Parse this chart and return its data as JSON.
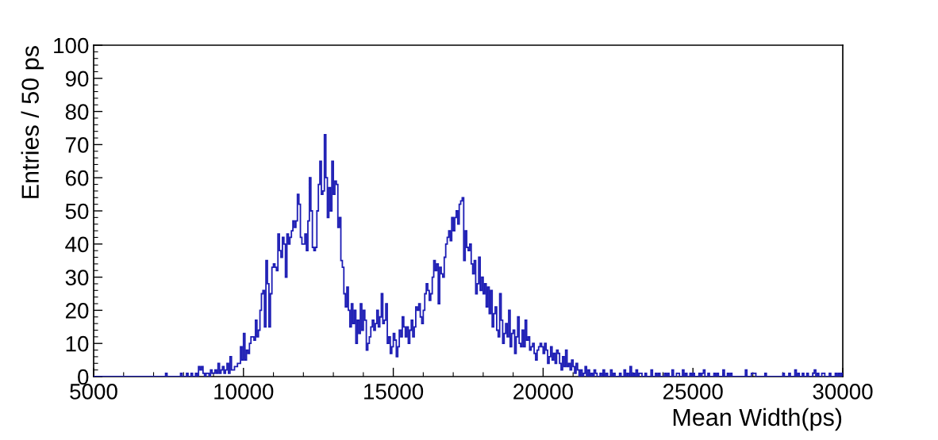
{
  "chart_data": {
    "type": "histogram",
    "xlabel": "Mean Width(ps)",
    "ylabel": "Entries / 50 ps",
    "color": "#1c1cb4",
    "xlim": [
      5000,
      30000
    ],
    "xticks": [
      5000,
      10000,
      15000,
      20000,
      25000,
      30000
    ],
    "ylim": [
      0,
      100
    ],
    "yticks": [
      0,
      10,
      20,
      30,
      40,
      50,
      60,
      70,
      80,
      90,
      100
    ],
    "grid": false,
    "legend": false,
    "bins": [
      5000,
      5050,
      5100,
      5150,
      5200,
      5250,
      5300,
      5350,
      5400,
      5450,
      5500,
      5550,
      5600,
      5650,
      5700,
      5750,
      5800,
      5850,
      5900,
      5950,
      6000,
      6050,
      6100,
      6150,
      6200,
      6250,
      6300,
      6350,
      6400,
      6450,
      6500,
      6550,
      6600,
      6650,
      6700,
      6750,
      6800,
      6850,
      6900,
      6950,
      7000,
      7050,
      7100,
      7150,
      7200,
      7250,
      7300,
      7350,
      7400,
      7450,
      7500,
      7550,
      7600,
      7650,
      7700,
      7750,
      7800,
      7850,
      7900,
      7950,
      8000,
      8050,
      8100,
      8150,
      8200,
      8250,
      8300,
      8350,
      8400,
      8450,
      8500,
      8550,
      8600,
      8650,
      8700,
      8750,
      8800,
      8850,
      8900,
      8950,
      9000,
      9050,
      9100,
      9150,
      9200,
      9250,
      9300,
      9350,
      9400,
      9450,
      9500,
      9550,
      9600,
      9650,
      9700,
      9750,
      9800,
      9850,
      9900,
      9950,
      10000,
      10050,
      10100,
      10150,
      10200,
      10250,
      10300,
      10350,
      10400,
      10450,
      10500,
      10550,
      10600,
      10650,
      10700,
      10750,
      10800,
      10850,
      10900,
      10950,
      11000,
      11050,
      11100,
      11150,
      11200,
      11250,
      11300,
      11350,
      11400,
      11450,
      11500,
      11550,
      11600,
      11650,
      11700,
      11750,
      11800,
      11850,
      11900,
      11950,
      12000,
      12050,
      12100,
      12150,
      12200,
      12250,
      12300,
      12350,
      12400,
      12450,
      12500,
      12550,
      12600,
      12650,
      12700,
      12750,
      12800,
      12850,
      12900,
      12950,
      13000,
      13050,
      13100,
      13150,
      13200,
      13250,
      13300,
      13350,
      13400,
      13450,
      13500,
      13550,
      13600,
      13650,
      13700,
      13750,
      13800,
      13850,
      13900,
      13950,
      14000,
      14050,
      14100,
      14150,
      14200,
      14250,
      14300,
      14350,
      14400,
      14450,
      14500,
      14550,
      14600,
      14650,
      14700,
      14750,
      14800,
      14850,
      14900,
      14950,
      15000,
      15050,
      15100,
      15150,
      15200,
      15250,
      15300,
      15350,
      15400,
      15450,
      15500,
      15550,
      15600,
      15650,
      15700,
      15750,
      15800,
      15850,
      15900,
      15950,
      16000,
      16050,
      16100,
      16150,
      16200,
      16250,
      16300,
      16350,
      16400,
      16450,
      16500,
      16550,
      16600,
      16650,
      16700,
      16750,
      16800,
      16850,
      16900,
      16950,
      17000,
      17050,
      17100,
      17150,
      17200,
      17250,
      17300,
      17350,
      17400,
      17450,
      17500,
      17550,
      17600,
      17650,
      17700,
      17750,
      17800,
      17850,
      17900,
      17950,
      18000,
      18050,
      18100,
      18150,
      18200,
      18250,
      18300,
      18350,
      18400,
      18450,
      18500,
      18550,
      18600,
      18650,
      18700,
      18750,
      18800,
      18850,
      18900,
      18950,
      19000,
      19050,
      19100,
      19150,
      19200,
      19250,
      19300,
      19350,
      19400,
      19450,
      19500,
      19550,
      19600,
      19650,
      19700,
      19750,
      19800,
      19850,
      19900,
      19950,
      20000,
      20050,
      20100,
      20150,
      20200,
      20250,
      20300,
      20350,
      20400,
      20450,
      20500,
      20550,
      20600,
      20650,
      20700,
      20750,
      20800,
      20850,
      20900,
      20950,
      21000,
      21050,
      21100,
      21150,
      21200,
      21250,
      21300,
      21350,
      21400,
      21450,
      21500,
      21550,
      21600,
      21650,
      21700,
      21750,
      21800,
      21850,
      21900,
      21950,
      22000,
      22050,
      22100,
      22150,
      22200,
      22250,
      22300,
      22350,
      22400,
      22450,
      22500,
      22550,
      22600,
      22650,
      22700,
      22750,
      22800,
      22850,
      22900,
      22950,
      23000,
      23050,
      23100,
      23150,
      23200,
      23250,
      23300,
      23350,
      23400,
      23450,
      23500,
      23550,
      23600,
      23650,
      23700,
      23750,
      23800,
      23850,
      23900,
      23950,
      24000,
      24050,
      24100,
      24150,
      24200,
      24250,
      24300,
      24350,
      24400,
      24450,
      24500,
      24550,
      24600,
      24650,
      24700,
      24750,
      24800,
      24850,
      24900,
      24950,
      25000,
      25050,
      25100,
      25150,
      25200,
      25250,
      25300,
      25350,
      25400,
      25450,
      25500,
      25550,
      25600,
      25650,
      25700,
      25750,
      25800,
      25850,
      25900,
      25950,
      26000,
      26050,
      26100,
      26150,
      26200,
      26250,
      26300,
      26350,
      26400,
      26450,
      26500,
      26550,
      26600,
      26650,
      26700,
      26750,
      26800,
      26850,
      26900,
      26950,
      27000,
      27050,
      27100,
      27150,
      27200,
      27250,
      27300,
      27350,
      27400,
      27450,
      27500,
      27550,
      27600,
      27650,
      27700,
      27750,
      27800,
      27850,
      27900,
      27950,
      28000,
      28050,
      28100,
      28150,
      28200,
      28250,
      28300,
      28350,
      28400,
      28450,
      28500,
      28550,
      28600,
      28650,
      28700,
      28750,
      28800,
      28850,
      28900,
      28950,
      29000,
      29050,
      29100,
      29150,
      29200,
      29250,
      29300,
      29350,
      29400,
      29450,
      29500,
      29550,
      29600,
      29650,
      29700,
      29750,
      29800,
      29850,
      29900,
      29950,
      30000
    ],
    "values": [
      0,
      0,
      0,
      0,
      0,
      0,
      0,
      0,
      0,
      0,
      0,
      0,
      0,
      0,
      0,
      0,
      0,
      0,
      0,
      0,
      0,
      0,
      0,
      0,
      0,
      0,
      0,
      0,
      0,
      0,
      0,
      0,
      0,
      0,
      0,
      0,
      0,
      0,
      0,
      0,
      0,
      0,
      0,
      0,
      0,
      0,
      0,
      0,
      1,
      0,
      0,
      0,
      0,
      0,
      0,
      0,
      0,
      0,
      1,
      0,
      0,
      0,
      1,
      0,
      0,
      1,
      0,
      0,
      1,
      0,
      3,
      2,
      3,
      1,
      0,
      1,
      1,
      0,
      2,
      1,
      1,
      2,
      1,
      4,
      1,
      2,
      3,
      1,
      2,
      4,
      1,
      6,
      2,
      2,
      3,
      3,
      4,
      4,
      9,
      5,
      13,
      5,
      8,
      7,
      10,
      12,
      12,
      11,
      17,
      12,
      14,
      20,
      25,
      26,
      15,
      35,
      28,
      15,
      25,
      33,
      34,
      33,
      32,
      43,
      38,
      36,
      42,
      40,
      30,
      43,
      40,
      42,
      44,
      47,
      45,
      47,
      55,
      52,
      42,
      40,
      40,
      43,
      38,
      47,
      60,
      50,
      39,
      38,
      39,
      50,
      58,
      65,
      55,
      56,
      73,
      60,
      48,
      57,
      50,
      65,
      55,
      59,
      58,
      45,
      48,
      35,
      33,
      25,
      21,
      27,
      20,
      15,
      22,
      16,
      20,
      10,
      17,
      13,
      22,
      14,
      20,
      17,
      8,
      10,
      12,
      15,
      17,
      14,
      16,
      20,
      15,
      18,
      25,
      16,
      17,
      22,
      10,
      12,
      7,
      9,
      13,
      11,
      6,
      9,
      14,
      12,
      18,
      15,
      12,
      15,
      10,
      14,
      17,
      12,
      15,
      21,
      20,
      22,
      18,
      16,
      20,
      25,
      28,
      26,
      23,
      25,
      30,
      35,
      32,
      34,
      22,
      33,
      31,
      30,
      36,
      40,
      42,
      44,
      41,
      48,
      44,
      48,
      50,
      46,
      52,
      53,
      54,
      35,
      44,
      39,
      38,
      40,
      34,
      31,
      35,
      25,
      28,
      36,
      26,
      30,
      25,
      28,
      21,
      27,
      19,
      26,
      15,
      19,
      21,
      14,
      12,
      25,
      17,
      10,
      13,
      16,
      12,
      20,
      9,
      13,
      14,
      7,
      12,
      18,
      10,
      9,
      14,
      9,
      17,
      11,
      12,
      8,
      9,
      10,
      7,
      5,
      8,
      9,
      10,
      9,
      7,
      10,
      8,
      4,
      6,
      9,
      5,
      7,
      4,
      8,
      7,
      4,
      2,
      6,
      3,
      8,
      3,
      4,
      2,
      5,
      3,
      1,
      4,
      2,
      0,
      2,
      0,
      1,
      3,
      0,
      2,
      0,
      1,
      0,
      2,
      1,
      0,
      0,
      1,
      0,
      2,
      0,
      1,
      0,
      0,
      2,
      0,
      1,
      0,
      0,
      0,
      1,
      0,
      0,
      2,
      0,
      1,
      0,
      3,
      0,
      1,
      0,
      2,
      0,
      1,
      1,
      0,
      0,
      1,
      0,
      0,
      0,
      2,
      0,
      0,
      1,
      0,
      1,
      0,
      0,
      0,
      1,
      0,
      1,
      0,
      0,
      2,
      0,
      0,
      1,
      1,
      0,
      0,
      2,
      0,
      1,
      0,
      0,
      1,
      0,
      1,
      0,
      0,
      0,
      1,
      0,
      1,
      2,
      0,
      0,
      1,
      0,
      0,
      0,
      1,
      0,
      1,
      0,
      0,
      0,
      2,
      0,
      0,
      1,
      0,
      1,
      0,
      0,
      0,
      0,
      0,
      0,
      0,
      0,
      0,
      2,
      0,
      0,
      0,
      1,
      1,
      1,
      0,
      0,
      0,
      0,
      0,
      0,
      1,
      0,
      0,
      0,
      0,
      0,
      0,
      0,
      0,
      0,
      0,
      0,
      1,
      0,
      0,
      0,
      1,
      0,
      0,
      0,
      2,
      0,
      1,
      0,
      0,
      1,
      0,
      0,
      1,
      0,
      0,
      0,
      1,
      2,
      0,
      1,
      0,
      0,
      1,
      1,
      0,
      0,
      0,
      1,
      0,
      0,
      0,
      1,
      0,
      1,
      0,
      1
    ]
  }
}
